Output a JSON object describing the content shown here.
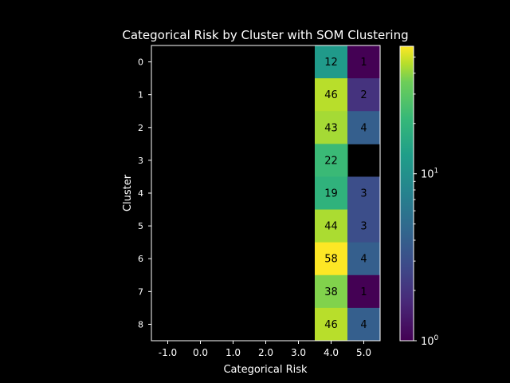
{
  "chart_data": {
    "type": "heatmap",
    "title": "Categorical Risk by Cluster with SOM Clustering",
    "xlabel": "Categorical Risk",
    "ylabel": "Cluster",
    "x_ticks": [
      "-1.0",
      "0.0",
      "1.0",
      "2.0",
      "3.0",
      "4.0",
      "5.0"
    ],
    "y_ticks": [
      "0",
      "1",
      "2",
      "3",
      "4",
      "5",
      "6",
      "7",
      "8"
    ],
    "rows": [
      {
        "cluster": "0",
        "values": [
          null,
          null,
          null,
          null,
          null,
          12,
          1
        ]
      },
      {
        "cluster": "1",
        "values": [
          null,
          null,
          null,
          null,
          null,
          46,
          2
        ]
      },
      {
        "cluster": "2",
        "values": [
          null,
          null,
          null,
          null,
          null,
          43,
          4
        ]
      },
      {
        "cluster": "3",
        "values": [
          null,
          null,
          null,
          null,
          null,
          22,
          null
        ]
      },
      {
        "cluster": "4",
        "values": [
          null,
          null,
          null,
          null,
          null,
          19,
          3
        ]
      },
      {
        "cluster": "5",
        "values": [
          null,
          null,
          null,
          null,
          null,
          44,
          3
        ]
      },
      {
        "cluster": "6",
        "values": [
          null,
          null,
          null,
          null,
          null,
          58,
          4
        ]
      },
      {
        "cluster": "7",
        "values": [
          null,
          null,
          null,
          null,
          null,
          38,
          1
        ]
      },
      {
        "cluster": "8",
        "values": [
          null,
          null,
          null,
          null,
          null,
          46,
          4
        ]
      }
    ],
    "colorbar": {
      "scale": "log",
      "colormap": "viridis",
      "vmin": 1,
      "vmax": 58,
      "tick_labels": [
        {
          "value": 1,
          "base": "10",
          "exp": "0"
        },
        {
          "value": 10,
          "base": "10",
          "exp": "1"
        }
      ]
    },
    "background": "#000000",
    "foreground": "#ffffff"
  }
}
